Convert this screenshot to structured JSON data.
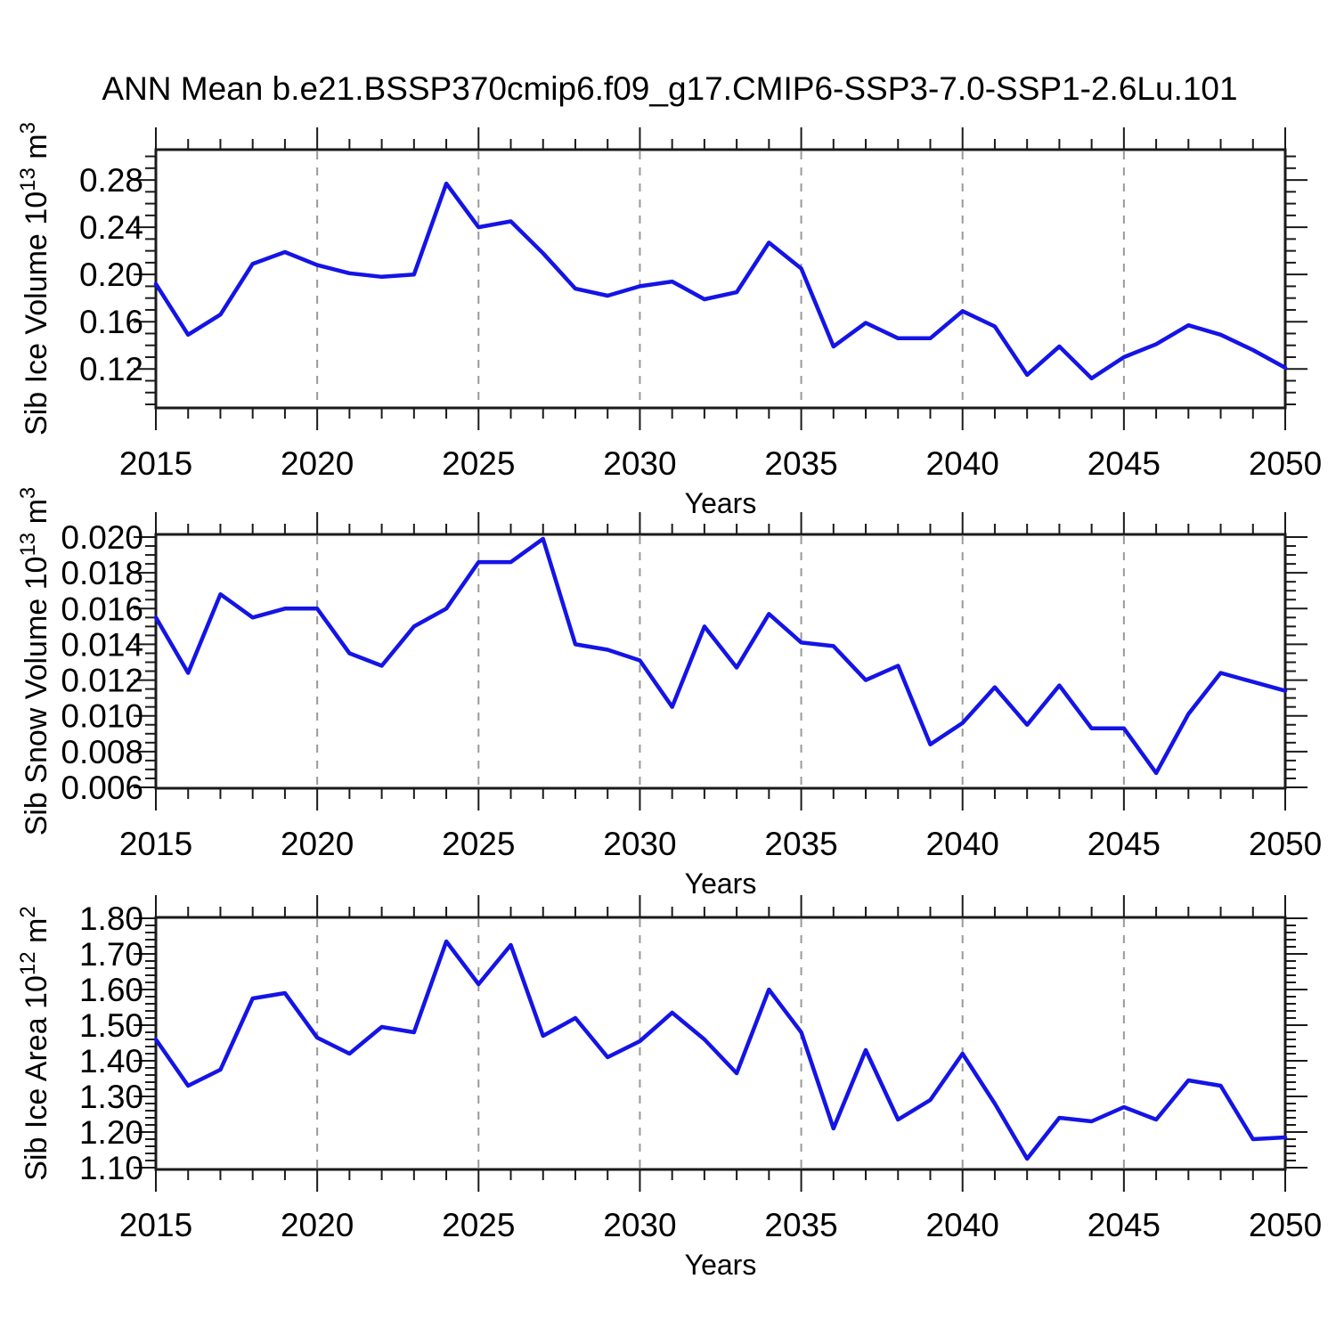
{
  "title": "ANN Mean b.e21.BSSP370cmip6.f09_g17.CMIP6-SSP3-7.0-SSP1-2.6Lu.101",
  "colors": {
    "line": "#1414e6",
    "frame": "#1a1a1a",
    "grid": "#999999",
    "text": "#000000",
    "background": "#ffffff"
  },
  "chart_data": [
    {
      "type": "line",
      "name": "sib-ice-volume",
      "ylabel_parts": [
        {
          "t": "Sib Ice Volume 10"
        },
        {
          "t": "13",
          "sup": true
        },
        {
          "t": " m"
        },
        {
          "t": "3",
          "sup": true
        }
      ],
      "xlabel": "Years",
      "xlim": [
        2015,
        2050
      ],
      "xticks": [
        2015,
        2020,
        2025,
        2030,
        2035,
        2040,
        2045,
        2050
      ],
      "xtick_labels": [
        "2015",
        "2020",
        "2025",
        "2030",
        "2035",
        "2040",
        "2045",
        "2050"
      ],
      "grid_x": [
        2020,
        2025,
        2030,
        2035,
        2040,
        2045
      ],
      "ylim": [
        0.087,
        0.3057
      ],
      "yticks": [
        0.12,
        0.16,
        0.2,
        0.24,
        0.28
      ],
      "ytick_labels": [
        "0.12",
        "0.16",
        "0.20",
        "0.24",
        "0.28"
      ],
      "y_minor_step": 0.01,
      "x": [
        2015,
        2016,
        2017,
        2018,
        2019,
        2020,
        2021,
        2022,
        2023,
        2024,
        2025,
        2026,
        2027,
        2028,
        2029,
        2030,
        2031,
        2032,
        2033,
        2034,
        2035,
        2036,
        2037,
        2038,
        2039,
        2040,
        2041,
        2042,
        2043,
        2044,
        2045,
        2046,
        2047,
        2048,
        2049,
        2050
      ],
      "values": [
        0.192,
        0.149,
        0.166,
        0.209,
        0.219,
        0.208,
        0.201,
        0.198,
        0.2,
        0.277,
        0.24,
        0.245,
        0.218,
        0.188,
        0.182,
        0.19,
        0.194,
        0.179,
        0.185,
        0.227,
        0.205,
        0.139,
        0.159,
        0.146,
        0.146,
        0.169,
        0.156,
        0.115,
        0.139,
        0.112,
        0.13,
        0.141,
        0.157,
        0.149,
        0.136,
        0.121
      ]
    },
    {
      "type": "line",
      "name": "sib-snow-volume",
      "ylabel_parts": [
        {
          "t": "Sib Snow Volume 10"
        },
        {
          "t": "13",
          "sup": true
        },
        {
          "t": " m"
        },
        {
          "t": "3",
          "sup": true
        }
      ],
      "xlabel": "Years",
      "xlim": [
        2015,
        2050
      ],
      "xticks": [
        2015,
        2020,
        2025,
        2030,
        2035,
        2040,
        2045,
        2050
      ],
      "xtick_labels": [
        "2015",
        "2020",
        "2025",
        "2030",
        "2035",
        "2040",
        "2045",
        "2050"
      ],
      "grid_x": [
        2020,
        2025,
        2030,
        2035,
        2040,
        2045
      ],
      "ylim": [
        0.00595,
        0.02015
      ],
      "yticks": [
        0.006,
        0.008,
        0.01,
        0.012,
        0.014,
        0.016,
        0.018,
        0.02
      ],
      "ytick_labels": [
        "0.006",
        "0.008",
        "0.010",
        "0.012",
        "0.014",
        "0.016",
        "0.018",
        "0.020"
      ],
      "y_minor_step": 0.0005,
      "x": [
        2015,
        2016,
        2017,
        2018,
        2019,
        2020,
        2021,
        2022,
        2023,
        2024,
        2025,
        2026,
        2027,
        2028,
        2029,
        2030,
        2031,
        2032,
        2033,
        2034,
        2035,
        2036,
        2037,
        2038,
        2039,
        2040,
        2041,
        2042,
        2043,
        2044,
        2045,
        2046,
        2047,
        2048,
        2049,
        2050
      ],
      "values": [
        0.0155,
        0.0124,
        0.0168,
        0.0155,
        0.016,
        0.016,
        0.0135,
        0.0128,
        0.015,
        0.016,
        0.0186,
        0.0186,
        0.0199,
        0.014,
        0.0137,
        0.0131,
        0.0105,
        0.015,
        0.0127,
        0.0157,
        0.0141,
        0.0139,
        0.012,
        0.0128,
        0.0084,
        0.0096,
        0.0116,
        0.0095,
        0.0117,
        0.0093,
        0.0093,
        0.0068,
        0.0101,
        0.0124,
        0.0119,
        0.0114
      ]
    },
    {
      "type": "line",
      "name": "sib-ice-area",
      "ylabel_parts": [
        {
          "t": "Sib Ice Area 10"
        },
        {
          "t": "12",
          "sup": true
        },
        {
          "t": " m"
        },
        {
          "t": "2",
          "sup": true
        }
      ],
      "xlabel": "Years",
      "xlim": [
        2015,
        2050
      ],
      "xticks": [
        2015,
        2020,
        2025,
        2030,
        2035,
        2040,
        2045,
        2050
      ],
      "xtick_labels": [
        "2015",
        "2020",
        "2025",
        "2030",
        "2035",
        "2040",
        "2045",
        "2050"
      ],
      "grid_x": [
        2020,
        2025,
        2030,
        2035,
        2040,
        2045
      ],
      "ylim": [
        1.095,
        1.8025
      ],
      "yticks": [
        1.1,
        1.2,
        1.3,
        1.4,
        1.5,
        1.6,
        1.7,
        1.8
      ],
      "ytick_labels": [
        "1.10",
        "1.20",
        "1.30",
        "1.40",
        "1.50",
        "1.60",
        "1.70",
        "1.80"
      ],
      "y_minor_step": 0.02,
      "x": [
        2015,
        2016,
        2017,
        2018,
        2019,
        2020,
        2021,
        2022,
        2023,
        2024,
        2025,
        2026,
        2027,
        2028,
        2029,
        2030,
        2031,
        2032,
        2033,
        2034,
        2035,
        2036,
        2037,
        2038,
        2039,
        2040,
        2041,
        2042,
        2043,
        2044,
        2045,
        2046,
        2047,
        2048,
        2049,
        2050
      ],
      "values": [
        1.46,
        1.33,
        1.375,
        1.575,
        1.59,
        1.465,
        1.42,
        1.495,
        1.48,
        1.735,
        1.615,
        1.725,
        1.47,
        1.52,
        1.41,
        1.455,
        1.535,
        1.46,
        1.365,
        1.6,
        1.48,
        1.21,
        1.43,
        1.235,
        1.29,
        1.42,
        1.28,
        1.125,
        1.24,
        1.23,
        1.27,
        1.235,
        1.345,
        1.33,
        1.18,
        1.185
      ]
    }
  ]
}
